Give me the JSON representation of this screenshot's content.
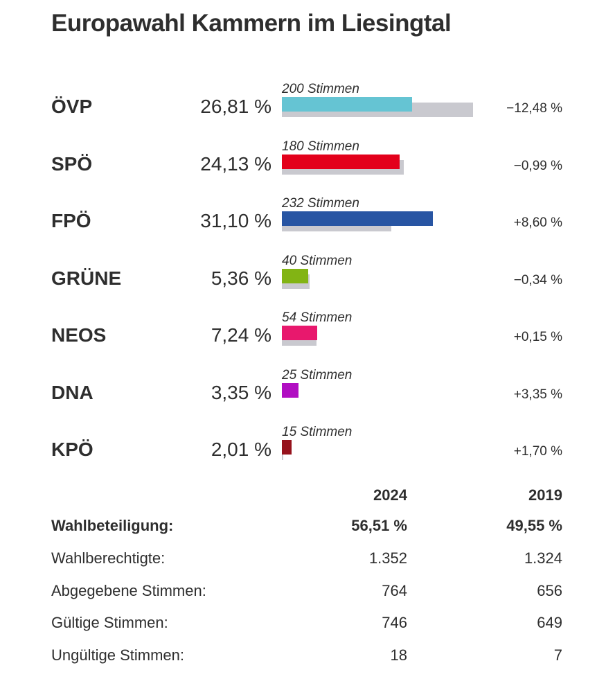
{
  "title": "Europawahl Kammern im Liesingtal",
  "chart_data": {
    "type": "bar",
    "orientation": "horizontal",
    "title": "Europawahl Kammern im Liesingtal",
    "categories": [
      "ÖVP",
      "SPÖ",
      "FPÖ",
      "GRÜNE",
      "NEOS",
      "DNA",
      "KPÖ"
    ],
    "series": [
      {
        "name": "2024",
        "percent_labels": [
          "26,81 %",
          "24,13 %",
          "31,10 %",
          "5,36 %",
          "7,24 %",
          "3,35 %",
          "2,01 %"
        ],
        "values": [
          26.81,
          24.13,
          31.1,
          5.36,
          7.24,
          3.35,
          2.01
        ],
        "votes": [
          "200 Stimmen",
          "180 Stimmen",
          "232 Stimmen",
          "40 Stimmen",
          "54 Stimmen",
          "25 Stimmen",
          "15 Stimmen"
        ]
      },
      {
        "name": "2019",
        "values": [
          39.29,
          25.12,
          22.5,
          5.7,
          7.09,
          0.0,
          0.31
        ]
      }
    ],
    "change_labels": [
      "−12,48 %",
      "−0,99 %",
      "+8,60 %",
      "−0,34 %",
      "+0,15 %",
      "+3,35 %",
      "+1,70 %"
    ],
    "colors": [
      "#65c4d3",
      "#e3001b",
      "#2855a3",
      "#82b414",
      "#e8186d",
      "#b10ec2",
      "#96121c"
    ],
    "previous_color": "#c9c9cf",
    "xlim": [
      0,
      39.29
    ]
  },
  "stats": {
    "year_current": "2024",
    "year_previous": "2019",
    "rows": [
      {
        "label": "Wahlbeteiligung:",
        "v2024": "56,51 %",
        "v2019": "49,55 %"
      },
      {
        "label": "Wahlberechtigte:",
        "v2024": "1.352",
        "v2019": "1.324"
      },
      {
        "label": "Abgegebene Stimmen:",
        "v2024": "764",
        "v2019": "656"
      },
      {
        "label": "Gültige Stimmen:",
        "v2024": "746",
        "v2019": "649"
      },
      {
        "label": "Ungültige Stimmen:",
        "v2024": "18",
        "v2019": "7"
      }
    ]
  }
}
